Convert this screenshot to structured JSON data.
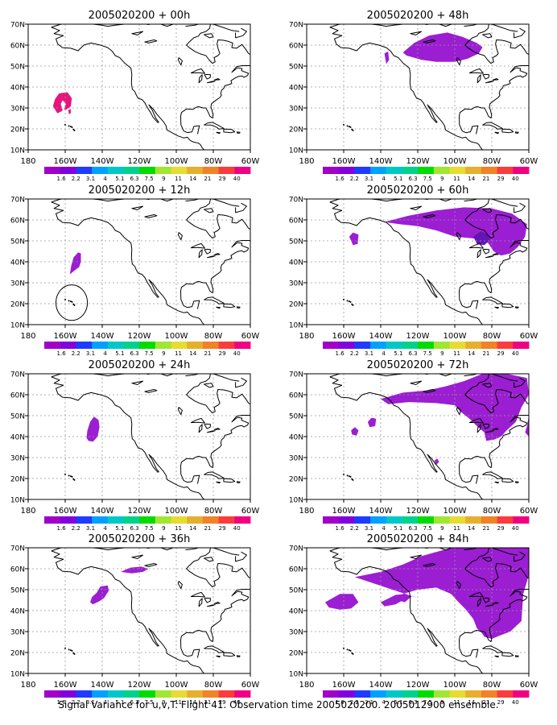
{
  "caption": "Signal Variance for u,v,T. Flight 41. Observation time 2005020200. 2005012900 ensemble.",
  "y_tick_labels": [
    "10N",
    "20N",
    "30N",
    "40N",
    "50N",
    "60N",
    "70N"
  ],
  "x_tick_labels": [
    "180",
    "160W",
    "140W",
    "120W",
    "100W",
    "80W",
    "60W"
  ],
  "colorbar": {
    "labels": [
      "1.6",
      "2.2",
      "3.1",
      "4",
      "5.1",
      "6.3",
      "7.5",
      "9",
      "11",
      "14",
      "21",
      "29",
      "40"
    ],
    "colors": [
      "#a000c8",
      "#8200dc",
      "#1e3cff",
      "#00a0ff",
      "#00c8c8",
      "#00d28c",
      "#00dc00",
      "#a0e632",
      "#e6dc32",
      "#e6af2d",
      "#f08228",
      "#fa3c3c",
      "#f00082"
    ]
  },
  "colors": {
    "signal_fill": "#9b1ed2",
    "high_signal": "#6414b4",
    "initial_signal": "#e6147d",
    "coast": "#000000",
    "grid": "#999999"
  },
  "panels": [
    {
      "title": "2005020200 + 00h",
      "lead_hours": 0
    },
    {
      "title": "2005020200 + 48h",
      "lead_hours": 48
    },
    {
      "title": "2005020200 + 12h",
      "lead_hours": 12
    },
    {
      "title": "2005020200 + 60h",
      "lead_hours": 60
    },
    {
      "title": "2005020200 + 24h",
      "lead_hours": 24
    },
    {
      "title": "2005020200 + 72h",
      "lead_hours": 72
    },
    {
      "title": "2005020200 + 36h",
      "lead_hours": 36
    },
    {
      "title": "2005020200 + 84h",
      "lead_hours": 84
    }
  ]
}
